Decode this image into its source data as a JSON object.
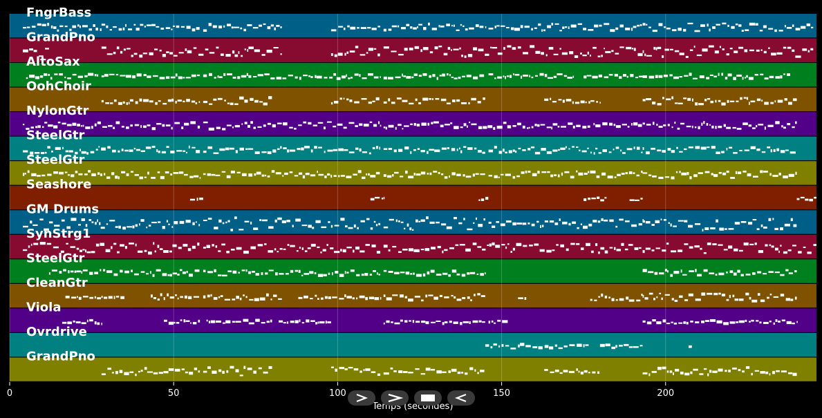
{
  "chart_data": {
    "type": "piano-roll",
    "xlabel": "Temps (secondes)",
    "xlim": [
      0,
      246
    ],
    "x_ticks": [
      0,
      50,
      100,
      150,
      200
    ],
    "grid": true,
    "tracks": [
      {
        "name": "FngrBass",
        "color": "#005f87",
        "segments": [
          [
            4,
            28,
            0.3
          ],
          [
            28,
            58,
            0.25
          ],
          [
            59,
            83,
            0.3
          ],
          [
            98,
            113,
            0.3
          ],
          [
            114,
            145,
            0.3
          ],
          [
            146,
            193,
            0.3
          ],
          [
            193,
            245,
            0.35
          ]
        ]
      },
      {
        "name": "GrandPno",
        "color": "#870a30",
        "segments": [
          [
            4,
            12,
            0.45
          ],
          [
            28,
            83,
            0.4
          ],
          [
            98,
            113,
            0.45
          ],
          [
            114,
            193,
            0.5
          ],
          [
            193,
            245,
            0.5
          ]
        ]
      },
      {
        "name": "AltoSax",
        "color": "#007f1f",
        "segments": [
          [
            5,
            27,
            0.2
          ],
          [
            28,
            58,
            0.2
          ],
          [
            59,
            113,
            0.2
          ],
          [
            114,
            145,
            0.2
          ],
          [
            146,
            172,
            0.2
          ],
          [
            175,
            193,
            0.15
          ],
          [
            193,
            238,
            0.2
          ]
        ]
      },
      {
        "name": "OohChoir",
        "color": "#7f5200",
        "segments": [
          [
            28,
            58,
            0.25
          ],
          [
            59,
            80,
            0.3
          ],
          [
            98,
            113,
            0.25
          ],
          [
            114,
            145,
            0.25
          ],
          [
            163,
            180,
            0.2
          ],
          [
            193,
            240,
            0.3
          ]
        ]
      },
      {
        "name": "NylonGtr",
        "color": "#520087",
        "segments": [
          [
            4,
            58,
            0.3
          ],
          [
            59,
            113,
            0.35
          ],
          [
            114,
            177,
            0.3
          ],
          [
            178,
            193,
            0.2
          ],
          [
            193,
            240,
            0.3
          ]
        ]
      },
      {
        "name": "SteelGtr",
        "color": "#008080",
        "segments": [
          [
            4,
            58,
            0.3
          ],
          [
            59,
            113,
            0.3
          ],
          [
            114,
            145,
            0.3
          ],
          [
            146,
            193,
            0.3
          ],
          [
            193,
            240,
            0.3
          ]
        ]
      },
      {
        "name": "SteelGtr",
        "color": "#808000",
        "segments": [
          [
            4,
            58,
            0.3
          ],
          [
            59,
            113,
            0.3
          ],
          [
            114,
            145,
            0.3
          ],
          [
            146,
            193,
            0.3
          ],
          [
            193,
            240,
            0.3
          ]
        ]
      },
      {
        "name": "Seashore",
        "color": "#7f1f00",
        "segments": [
          [
            55,
            59,
            0.15
          ],
          [
            110,
            114,
            0.15
          ],
          [
            143,
            146,
            0.12
          ],
          [
            175,
            182,
            0.15
          ],
          [
            189,
            193,
            0.15
          ],
          [
            240,
            246,
            0.15
          ]
        ]
      },
      {
        "name": "GM Drums",
        "color": "#005f87",
        "segments": [
          [
            4,
            12,
            0.6
          ],
          [
            12,
            58,
            0.4
          ],
          [
            59,
            83,
            0.6
          ],
          [
            83,
            113,
            0.45
          ],
          [
            114,
            145,
            0.6
          ],
          [
            146,
            193,
            0.4
          ],
          [
            193,
            240,
            0.6
          ]
        ]
      },
      {
        "name": "SynStrg1",
        "color": "#870a30",
        "segments": [
          [
            4,
            58,
            0.45
          ],
          [
            59,
            113,
            0.4
          ],
          [
            114,
            193,
            0.4
          ],
          [
            193,
            246,
            0.45
          ]
        ]
      },
      {
        "name": "SteelGtr",
        "color": "#007f1f",
        "segments": [
          [
            12,
            58,
            0.25
          ],
          [
            59,
            113,
            0.25
          ],
          [
            114,
            145,
            0.25
          ],
          [
            193,
            240,
            0.25
          ]
        ]
      },
      {
        "name": "CleanGtr",
        "color": "#7f5200",
        "segments": [
          [
            17,
            35,
            0.1
          ],
          [
            43,
            58,
            0.25
          ],
          [
            59,
            83,
            0.25
          ],
          [
            88,
            113,
            0.15
          ],
          [
            114,
            145,
            0.35
          ],
          [
            155,
            158,
            0.15
          ],
          [
            177,
            193,
            0.3
          ],
          [
            193,
            240,
            0.35
          ]
        ]
      },
      {
        "name": "Viola",
        "color": "#520087",
        "segments": [
          [
            16,
            28,
            0.2
          ],
          [
            47,
            58,
            0.15
          ],
          [
            60,
            80,
            0.15
          ],
          [
            82,
            98,
            0.15
          ],
          [
            114,
            145,
            0.15
          ],
          [
            146,
            152,
            0.15
          ],
          [
            193,
            240,
            0.15
          ]
        ]
      },
      {
        "name": "Ovrdrive",
        "color": "#008080",
        "segments": [
          [
            145,
            177,
            0.2
          ],
          [
            180,
            193,
            0.15
          ],
          [
            207,
            208,
            0.15
          ]
        ]
      },
      {
        "name": "GrandPno",
        "color": "#808000",
        "segments": [
          [
            28,
            58,
            0.35
          ],
          [
            59,
            80,
            0.4
          ],
          [
            98,
            113,
            0.35
          ],
          [
            114,
            145,
            0.3
          ],
          [
            163,
            180,
            0.2
          ],
          [
            193,
            240,
            0.35
          ]
        ]
      }
    ]
  },
  "controls": {
    "play": "play-icon",
    "forward": "forward-icon",
    "stop": "stop-icon",
    "rewind": "rewind-icon"
  }
}
